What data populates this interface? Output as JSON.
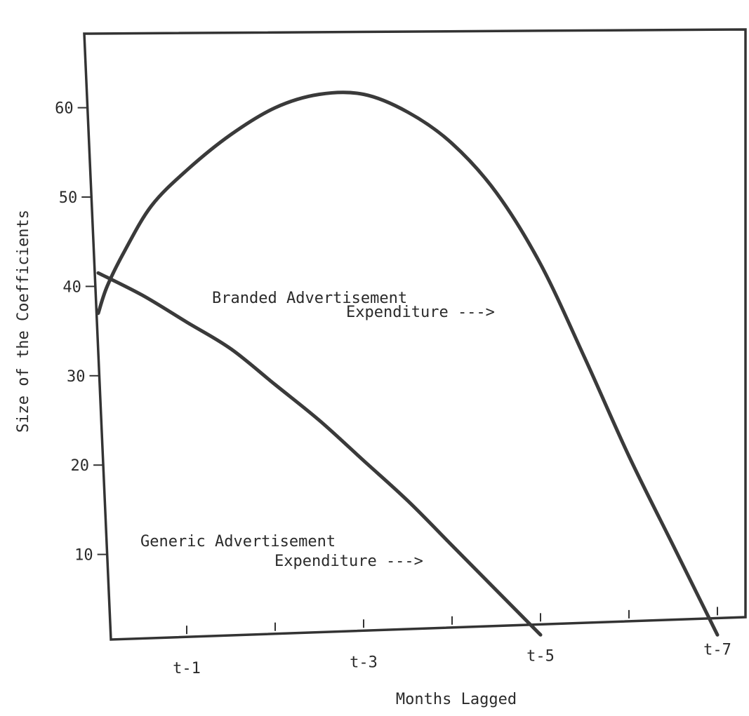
{
  "chart_data": {
    "type": "line",
    "title": "",
    "xlabel": "Months Lagged",
    "ylabel": "Size of the Coefficients",
    "xlim": [
      0,
      7
    ],
    "ylim": [
      0,
      70
    ],
    "x_ticks": [
      1,
      2,
      3,
      4,
      5,
      6,
      7
    ],
    "x_tick_labels": [
      {
        "x": 1,
        "label": "t-1"
      },
      {
        "x": 3,
        "label": "t-3"
      },
      {
        "x": 5,
        "label": "t-5"
      },
      {
        "x": 7,
        "label": "t-7"
      }
    ],
    "y_ticks": [
      10,
      20,
      30,
      40,
      50,
      60
    ],
    "grid": false,
    "series": [
      {
        "key": "branded",
        "x": [
          0,
          0.1,
          0.3,
          0.6,
          1.0,
          1.5,
          2.0,
          2.5,
          3.0,
          3.5,
          4.0,
          4.5,
          5.0,
          5.5,
          6.0,
          6.5,
          6.8,
          7.0
        ],
        "values": [
          37,
          40,
          44,
          49,
          53,
          57,
          60,
          61.5,
          61.5,
          59.5,
          56,
          50.5,
          42.5,
          32,
          21,
          11,
          5,
          1
        ]
      },
      {
        "key": "generic",
        "x": [
          0,
          0.5,
          1.0,
          1.5,
          2.0,
          2.5,
          3.0,
          3.5,
          4.0,
          4.5,
          5.0
        ],
        "values": [
          41.5,
          39,
          36,
          33,
          29,
          25,
          20.5,
          16,
          11,
          6,
          1
        ]
      }
    ],
    "annotations": [
      {
        "key": "branded",
        "lines": [
          "Branded Advertisement",
          "Expenditure --->"
        ]
      },
      {
        "key": "generic",
        "lines": [
          "Generic Advertisement",
          "Expenditure --->"
        ]
      }
    ]
  }
}
